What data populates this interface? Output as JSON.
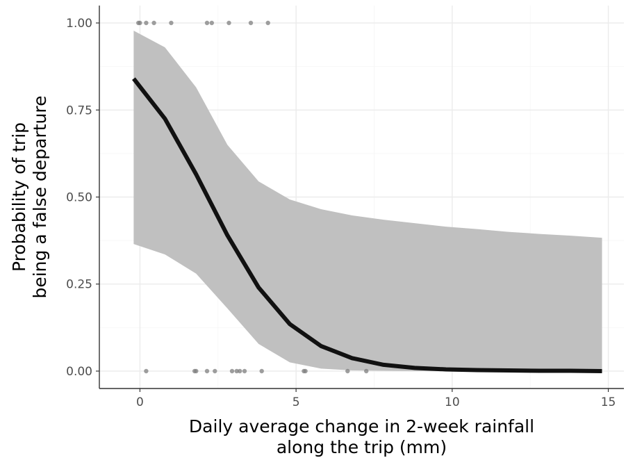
{
  "chart_data": {
    "type": "line",
    "xlabel_lines": [
      "Daily average change in 2-week rainfall",
      "along the trip (mm)"
    ],
    "ylabel_lines": [
      "Probability of trip",
      "being a false departure"
    ],
    "xlim": [
      -1.3,
      15.5
    ],
    "ylim": [
      -0.05,
      1.05
    ],
    "x_ticks": [
      0,
      5,
      10,
      15
    ],
    "x_tick_labels": [
      "0",
      "5",
      "10",
      "15"
    ],
    "y_ticks": [
      0,
      0.25,
      0.5,
      0.75,
      1.0
    ],
    "y_tick_labels": [
      "0.00",
      "0.25",
      "0.50",
      "0.75",
      "1.00"
    ],
    "grid": true,
    "series": [
      {
        "role": "fitted-line",
        "color": "#111111",
        "x": [
          -0.2,
          0.8,
          1.8,
          2.8,
          3.8,
          4.8,
          5.8,
          6.8,
          7.8,
          8.8,
          9.8,
          10.8,
          11.8,
          12.8,
          13.8,
          14.8
        ],
        "y": [
          0.84,
          0.725,
          0.565,
          0.39,
          0.24,
          0.135,
          0.072,
          0.037,
          0.018,
          0.009,
          0.005,
          0.003,
          0.002,
          0.001,
          0.001,
          0.0
        ]
      }
    ],
    "ribbon": {
      "color": "#c0c0c0",
      "x": [
        -0.2,
        0.8,
        1.8,
        2.8,
        3.8,
        4.8,
        5.8,
        6.8,
        7.8,
        8.8,
        9.8,
        10.8,
        11.8,
        12.8,
        13.8,
        14.8
      ],
      "lower": [
        0.365,
        0.335,
        0.28,
        0.18,
        0.078,
        0.025,
        0.007,
        0.002,
        0.001,
        0.0,
        0.0,
        0.0,
        0.0,
        0.0,
        0.0,
        0.0
      ],
      "upper": [
        0.978,
        0.93,
        0.815,
        0.65,
        0.545,
        0.493,
        0.465,
        0.447,
        0.435,
        0.425,
        0.415,
        0.408,
        0.4,
        0.394,
        0.389,
        0.383
      ]
    },
    "points": {
      "color": "#7f7f7f",
      "x": [
        -0.05,
        0.0,
        0.2,
        0.45,
        1.0,
        2.15,
        2.3,
        2.85,
        3.55,
        4.1,
        0.2,
        1.75,
        1.8,
        2.15,
        2.4,
        2.95,
        3.1,
        3.2,
        3.35,
        3.9,
        5.25,
        5.3,
        6.65,
        7.25
      ],
      "y": [
        1,
        1,
        1,
        1,
        1,
        1,
        1,
        1,
        1,
        1,
        0,
        0,
        0,
        0,
        0,
        0,
        0,
        0,
        0,
        0,
        0,
        0,
        0,
        0
      ]
    }
  }
}
